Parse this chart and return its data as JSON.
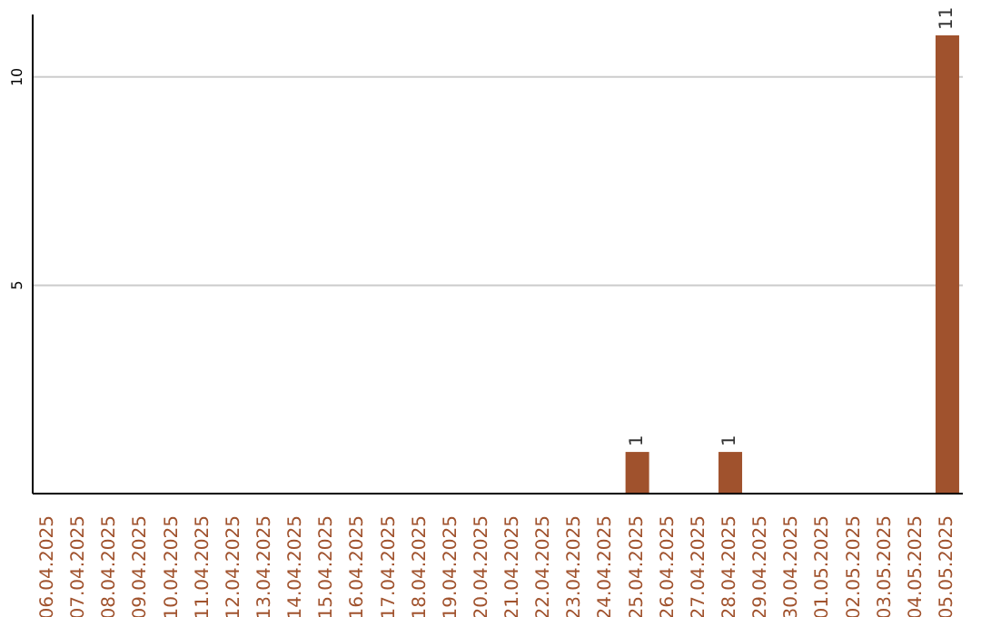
{
  "chart_data": {
    "type": "bar",
    "categories": [
      "06.04.2025",
      "07.04.2025",
      "08.04.2025",
      "09.04.2025",
      "10.04.2025",
      "11.04.2025",
      "12.04.2025",
      "13.04.2025",
      "14.04.2025",
      "15.04.2025",
      "16.04.2025",
      "17.04.2025",
      "18.04.2025",
      "19.04.2025",
      "20.04.2025",
      "21.04.2025",
      "22.04.2025",
      "23.04.2025",
      "24.04.2025",
      "25.04.2025",
      "26.04.2025",
      "27.04.2025",
      "28.04.2025",
      "29.04.2025",
      "30.04.2025",
      "01.05.2025",
      "02.05.2025",
      "03.05.2025",
      "04.05.2025",
      "05.05.2025"
    ],
    "values": [
      0,
      0,
      0,
      0,
      0,
      0,
      0,
      0,
      0,
      0,
      0,
      0,
      0,
      0,
      0,
      0,
      0,
      0,
      0,
      1,
      0,
      0,
      1,
      0,
      0,
      0,
      0,
      0,
      0,
      11
    ],
    "value_labels": [
      null,
      null,
      null,
      null,
      null,
      null,
      null,
      null,
      null,
      null,
      null,
      null,
      null,
      null,
      null,
      null,
      null,
      null,
      null,
      "1",
      null,
      null,
      "1",
      null,
      null,
      null,
      null,
      null,
      null,
      "11"
    ],
    "color": "#a0522d",
    "ylim": [
      0,
      11.5
    ],
    "yticks": [
      5,
      10
    ],
    "grid": "y"
  }
}
